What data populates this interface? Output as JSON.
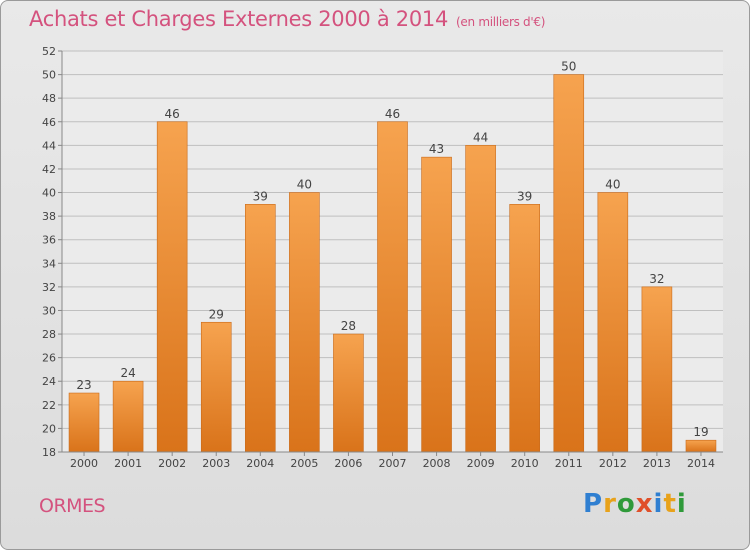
{
  "title": "Achats et Charges Externes 2000 à 2014",
  "unit_note": "(en milliers d'€)",
  "town": "ORMES",
  "logo": {
    "text": "Proxiti",
    "letters": [
      {
        "ch": "P",
        "color": "#2f7fd1"
      },
      {
        "ch": "r",
        "color": "#e8a21a"
      },
      {
        "ch": "o",
        "color": "#2f9a3a"
      },
      {
        "ch": "x",
        "color": "#e0502a"
      },
      {
        "ch": "i",
        "color": "#2f7fd1"
      },
      {
        "ch": "t",
        "color": "#e8a21a"
      },
      {
        "ch": "i",
        "color": "#2f9a3a"
      }
    ]
  },
  "colors": {
    "title": "#d4527e",
    "bar_top": "#f6a34f",
    "bar_bottom": "#d9731a",
    "grid": "#bfbfbf",
    "plot_bg": "#ebebeb"
  },
  "chart_data": {
    "type": "bar",
    "title": "Achats et Charges Externes 2000 à 2014",
    "xlabel": "",
    "ylabel": "",
    "categories": [
      "2000",
      "2001",
      "2002",
      "2003",
      "2004",
      "2005",
      "2006",
      "2007",
      "2008",
      "2009",
      "2010",
      "2011",
      "2012",
      "2013",
      "2014"
    ],
    "values": [
      23,
      24,
      46,
      29,
      39,
      40,
      28,
      46,
      43,
      44,
      39,
      50,
      40,
      32,
      19
    ],
    "ylim": [
      18,
      52
    ],
    "yticks": [
      18,
      20,
      22,
      24,
      26,
      28,
      30,
      32,
      34,
      36,
      38,
      40,
      42,
      44,
      46,
      48,
      50,
      52
    ],
    "grid": true,
    "data_labels": true
  }
}
